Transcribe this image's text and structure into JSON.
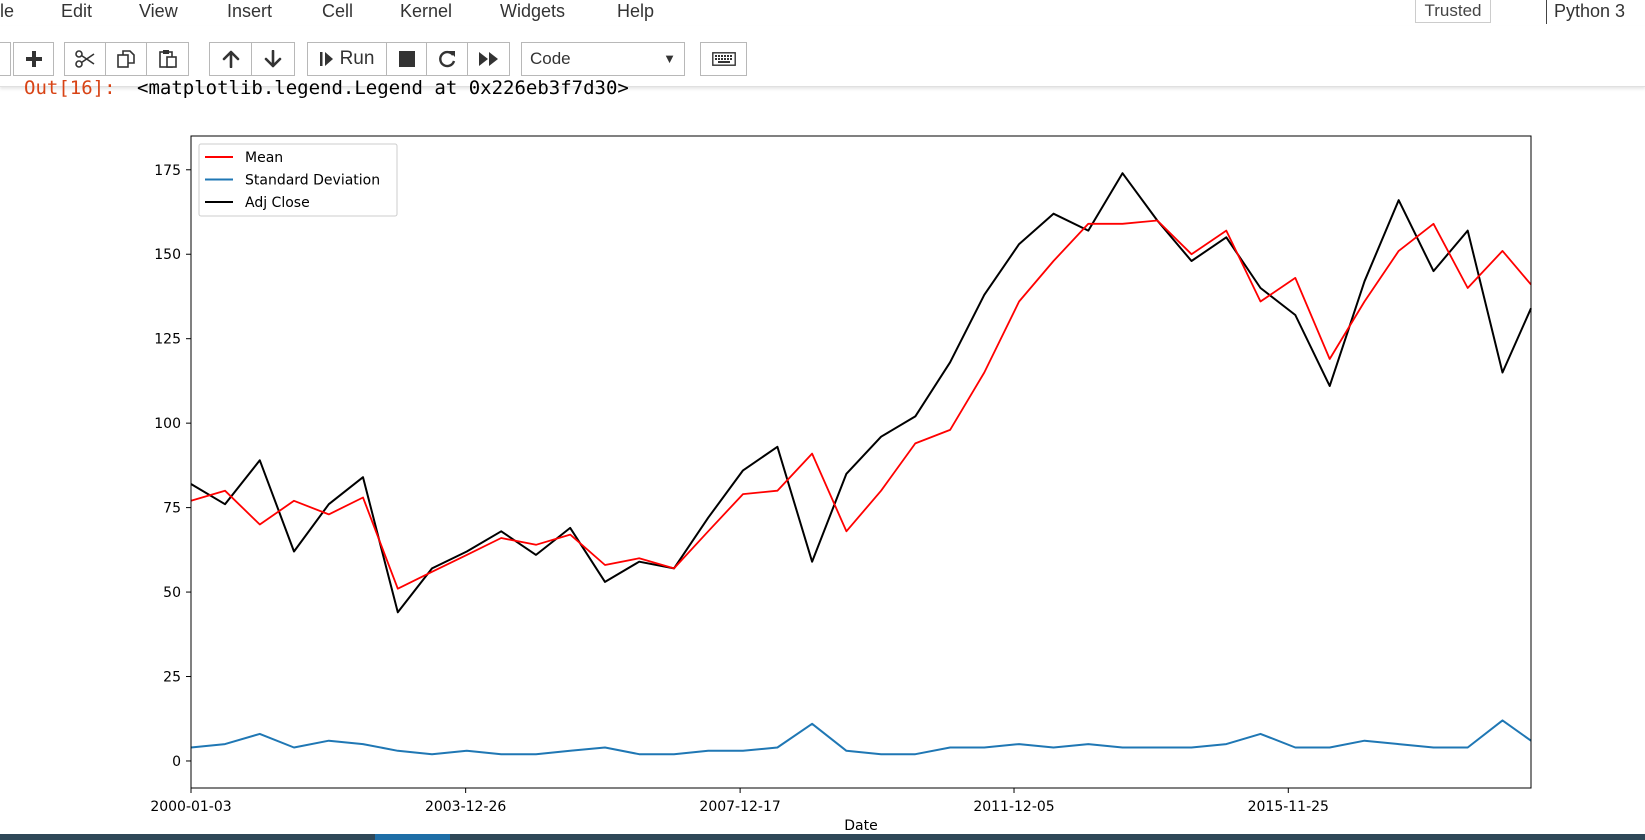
{
  "menu": {
    "items": [
      "le",
      "Edit",
      "View",
      "Insert",
      "Cell",
      "Kernel",
      "Widgets",
      "Help"
    ],
    "trusted_label": "Trusted",
    "kernel_label": "Python 3"
  },
  "toolbar": {
    "run_label": "Run",
    "cell_type": "Code",
    "icons": [
      "insert-cell-below-icon",
      "cut-icon",
      "copy-icon",
      "paste-icon",
      "move-up-icon",
      "move-down-icon",
      "run-icon",
      "stop-icon",
      "restart-icon",
      "fast-forward-icon",
      "keyboard-icon"
    ]
  },
  "output": {
    "prompt": "Out[16]:",
    "text": "<matplotlib.legend.Legend at 0x226eb3f7d30>"
  },
  "colors": {
    "mean": "#ff0000",
    "std": "#1f77b4",
    "adj_close": "#000000",
    "out_prompt": "#d84315"
  },
  "chart_data": {
    "type": "line",
    "xlabel": "Date",
    "ylabel": "",
    "title": "",
    "xlim": [
      "2000-01-03",
      "2019-06-01"
    ],
    "ylim": [
      -8,
      185
    ],
    "xticks": [
      "2000-01-03",
      "2003-12-26",
      "2007-12-17",
      "2011-12-05",
      "2015-11-25"
    ],
    "yticks": [
      0,
      25,
      50,
      75,
      100,
      125,
      150,
      175
    ],
    "grid": false,
    "legend": "upper left",
    "series": [
      {
        "name": "Mean",
        "dates": [
          "2000-01-03",
          "2000-07-01",
          "2001-01-01",
          "2001-07-01",
          "2002-01-01",
          "2002-07-01",
          "2003-01-01",
          "2003-07-01",
          "2004-01-01",
          "2004-07-01",
          "2005-01-01",
          "2005-07-01",
          "2006-01-01",
          "2006-07-01",
          "2007-01-01",
          "2007-07-01",
          "2008-01-01",
          "2008-07-01",
          "2009-01-01",
          "2009-07-01",
          "2010-01-01",
          "2010-07-01",
          "2011-01-01",
          "2011-07-01",
          "2012-01-01",
          "2012-07-01",
          "2013-01-01",
          "2013-07-01",
          "2014-01-01",
          "2014-07-01",
          "2015-01-01",
          "2015-07-01",
          "2016-01-01",
          "2016-07-01",
          "2017-01-01",
          "2017-07-01",
          "2018-01-01",
          "2018-07-01",
          "2019-01-01",
          "2019-06-01"
        ],
        "values": [
          77,
          80,
          70,
          77,
          73,
          78,
          51,
          56,
          61,
          66,
          64,
          67,
          58,
          60,
          57,
          68,
          79,
          80,
          91,
          68,
          80,
          94,
          98,
          115,
          136,
          148,
          159,
          159,
          160,
          150,
          157,
          136,
          143,
          119,
          136,
          151,
          159,
          140,
          151,
          141
        ]
      },
      {
        "name": "Standard Deviation",
        "dates": [
          "2000-01-03",
          "2000-07-01",
          "2001-01-01",
          "2001-07-01",
          "2002-01-01",
          "2002-07-01",
          "2003-01-01",
          "2003-07-01",
          "2004-01-01",
          "2004-07-01",
          "2005-01-01",
          "2005-07-01",
          "2006-01-01",
          "2006-07-01",
          "2007-01-01",
          "2007-07-01",
          "2008-01-01",
          "2008-07-01",
          "2009-01-01",
          "2009-07-01",
          "2010-01-01",
          "2010-07-01",
          "2011-01-01",
          "2011-07-01",
          "2012-01-01",
          "2012-07-01",
          "2013-01-01",
          "2013-07-01",
          "2014-01-01",
          "2014-07-01",
          "2015-01-01",
          "2015-07-01",
          "2016-01-01",
          "2016-07-01",
          "2017-01-01",
          "2017-07-01",
          "2018-01-01",
          "2018-07-01",
          "2019-01-01",
          "2019-06-01"
        ],
        "values": [
          4,
          5,
          8,
          4,
          6,
          5,
          3,
          2,
          3,
          2,
          2,
          3,
          4,
          2,
          2,
          3,
          3,
          4,
          11,
          3,
          2,
          2,
          4,
          4,
          5,
          4,
          5,
          4,
          4,
          4,
          5,
          8,
          4,
          4,
          6,
          5,
          4,
          4,
          12,
          6
        ]
      },
      {
        "name": "Adj Close",
        "dates": [
          "2000-01-03",
          "2000-07-01",
          "2001-01-01",
          "2001-07-01",
          "2002-01-01",
          "2002-07-01",
          "2003-01-01",
          "2003-07-01",
          "2004-01-01",
          "2004-07-01",
          "2005-01-01",
          "2005-07-01",
          "2006-01-01",
          "2006-07-01",
          "2007-01-01",
          "2007-07-01",
          "2008-01-01",
          "2008-07-01",
          "2009-01-01",
          "2009-07-01",
          "2010-01-01",
          "2010-07-01",
          "2011-01-01",
          "2011-07-01",
          "2012-01-01",
          "2012-07-01",
          "2013-01-01",
          "2013-07-01",
          "2014-01-01",
          "2014-07-01",
          "2015-01-01",
          "2015-07-01",
          "2016-01-01",
          "2016-07-01",
          "2017-01-01",
          "2017-07-01",
          "2018-01-01",
          "2018-07-01",
          "2019-01-01",
          "2019-06-01"
        ],
        "values": [
          82,
          76,
          89,
          62,
          76,
          84,
          44,
          57,
          62,
          68,
          61,
          69,
          53,
          59,
          57,
          72,
          86,
          93,
          59,
          85,
          96,
          102,
          118,
          138,
          153,
          162,
          157,
          174,
          160,
          148,
          155,
          140,
          132,
          111,
          142,
          166,
          145,
          157,
          115,
          134
        ]
      }
    ]
  }
}
